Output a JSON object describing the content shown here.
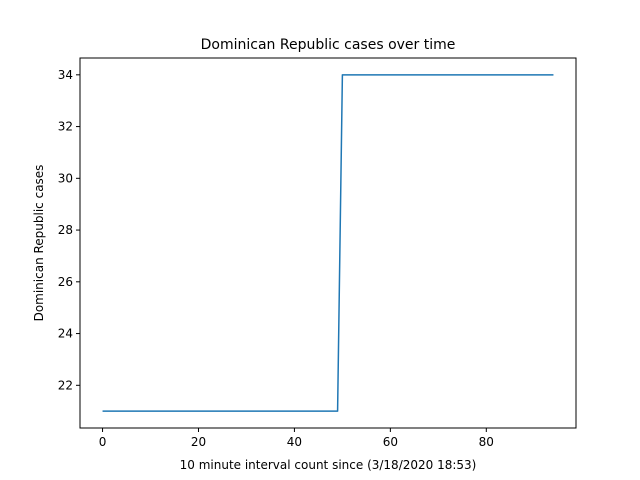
{
  "chart_data": {
    "type": "line",
    "title": "Dominican Republic cases over time",
    "xlabel": "10 minute interval count since (3/18/2020 18:53)",
    "ylabel": "Dominican Republic cases",
    "xlim": [
      -4.7,
      98.7
    ],
    "ylim": [
      20.35,
      34.65
    ],
    "xticks": [
      0,
      20,
      40,
      60,
      80
    ],
    "yticks": [
      22,
      24,
      26,
      28,
      30,
      32,
      34
    ],
    "xtick_labels": [
      "0",
      "20",
      "40",
      "60",
      "80"
    ],
    "ytick_labels": [
      "22",
      "24",
      "26",
      "28",
      "30",
      "32",
      "34"
    ],
    "grid": false,
    "series": [
      {
        "name": "Dominican Republic cases",
        "color": "#1f77b4",
        "x": [
          0,
          49,
          50,
          94
        ],
        "y": [
          21,
          21,
          34,
          34
        ]
      }
    ]
  }
}
